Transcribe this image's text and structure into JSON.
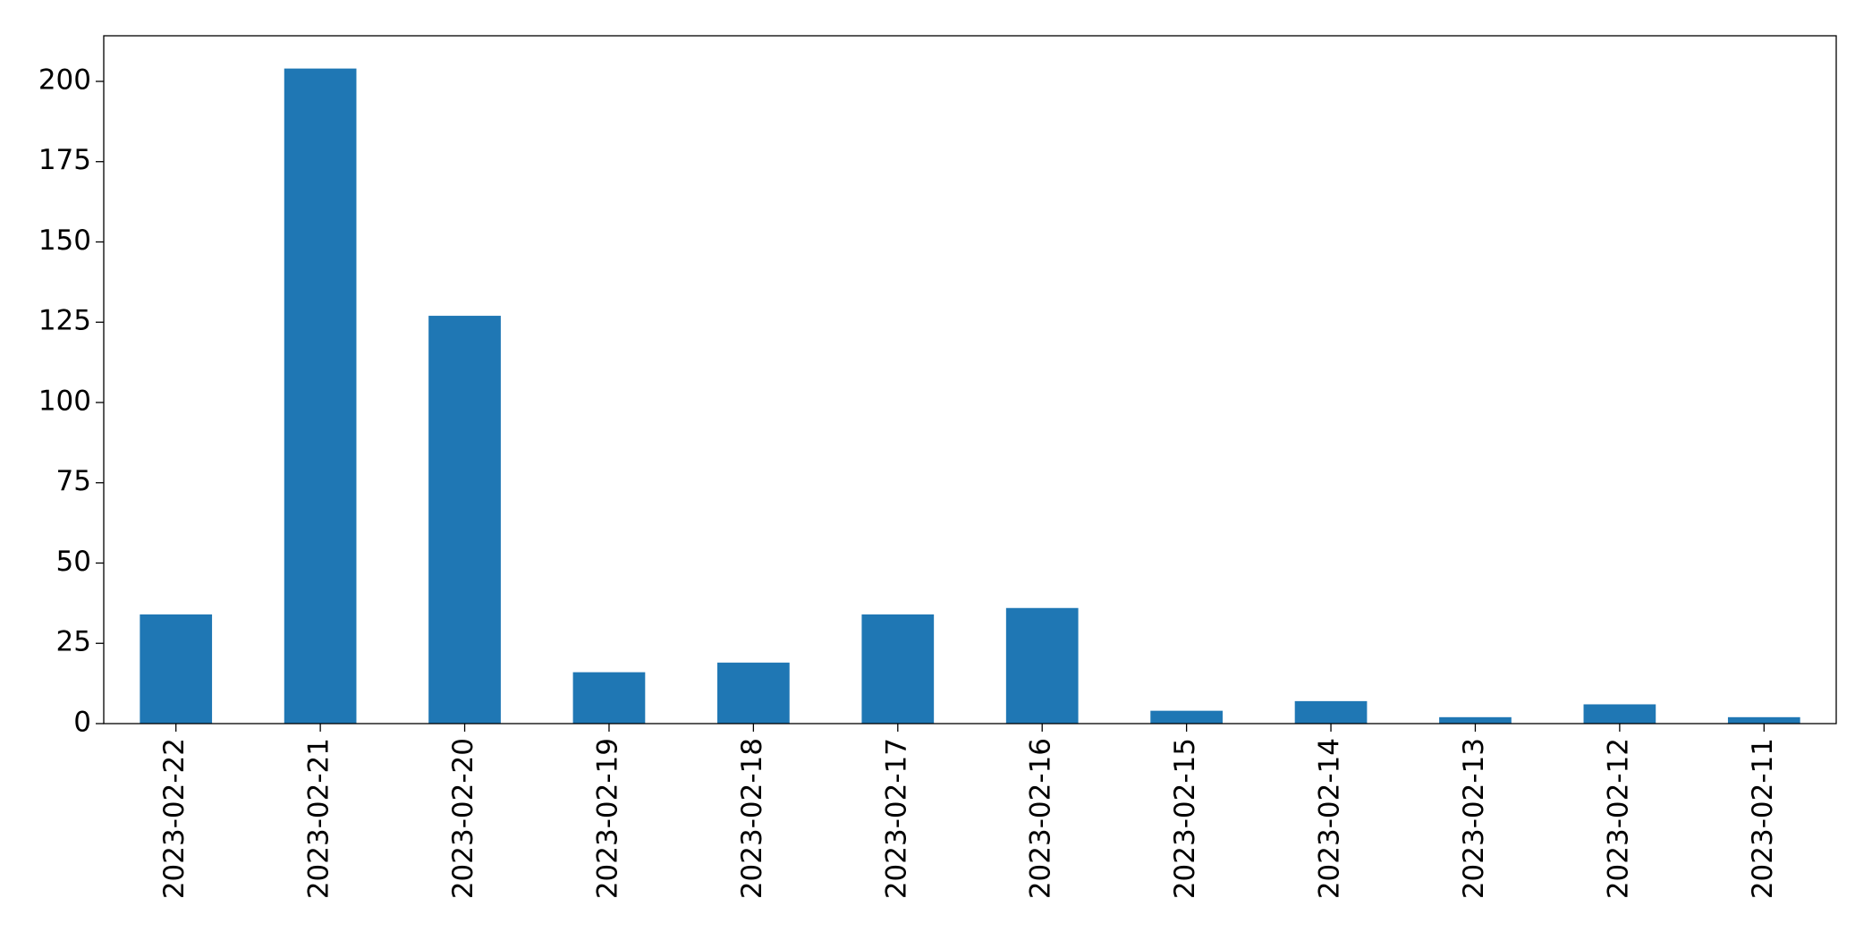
{
  "chart_data": {
    "type": "bar",
    "categories": [
      "2023-02-22",
      "2023-02-21",
      "2023-02-20",
      "2023-02-19",
      "2023-02-18",
      "2023-02-17",
      "2023-02-16",
      "2023-02-15",
      "2023-02-14",
      "2023-02-13",
      "2023-02-12",
      "2023-02-11"
    ],
    "values": [
      34,
      204,
      127,
      16,
      19,
      34,
      36,
      4,
      7,
      2,
      6,
      2
    ],
    "color": "#1f77b4",
    "ylim": [
      0,
      214.2
    ],
    "yticks": [
      0,
      25,
      50,
      75,
      100,
      125,
      150,
      175,
      200
    ],
    "grid": false
  }
}
